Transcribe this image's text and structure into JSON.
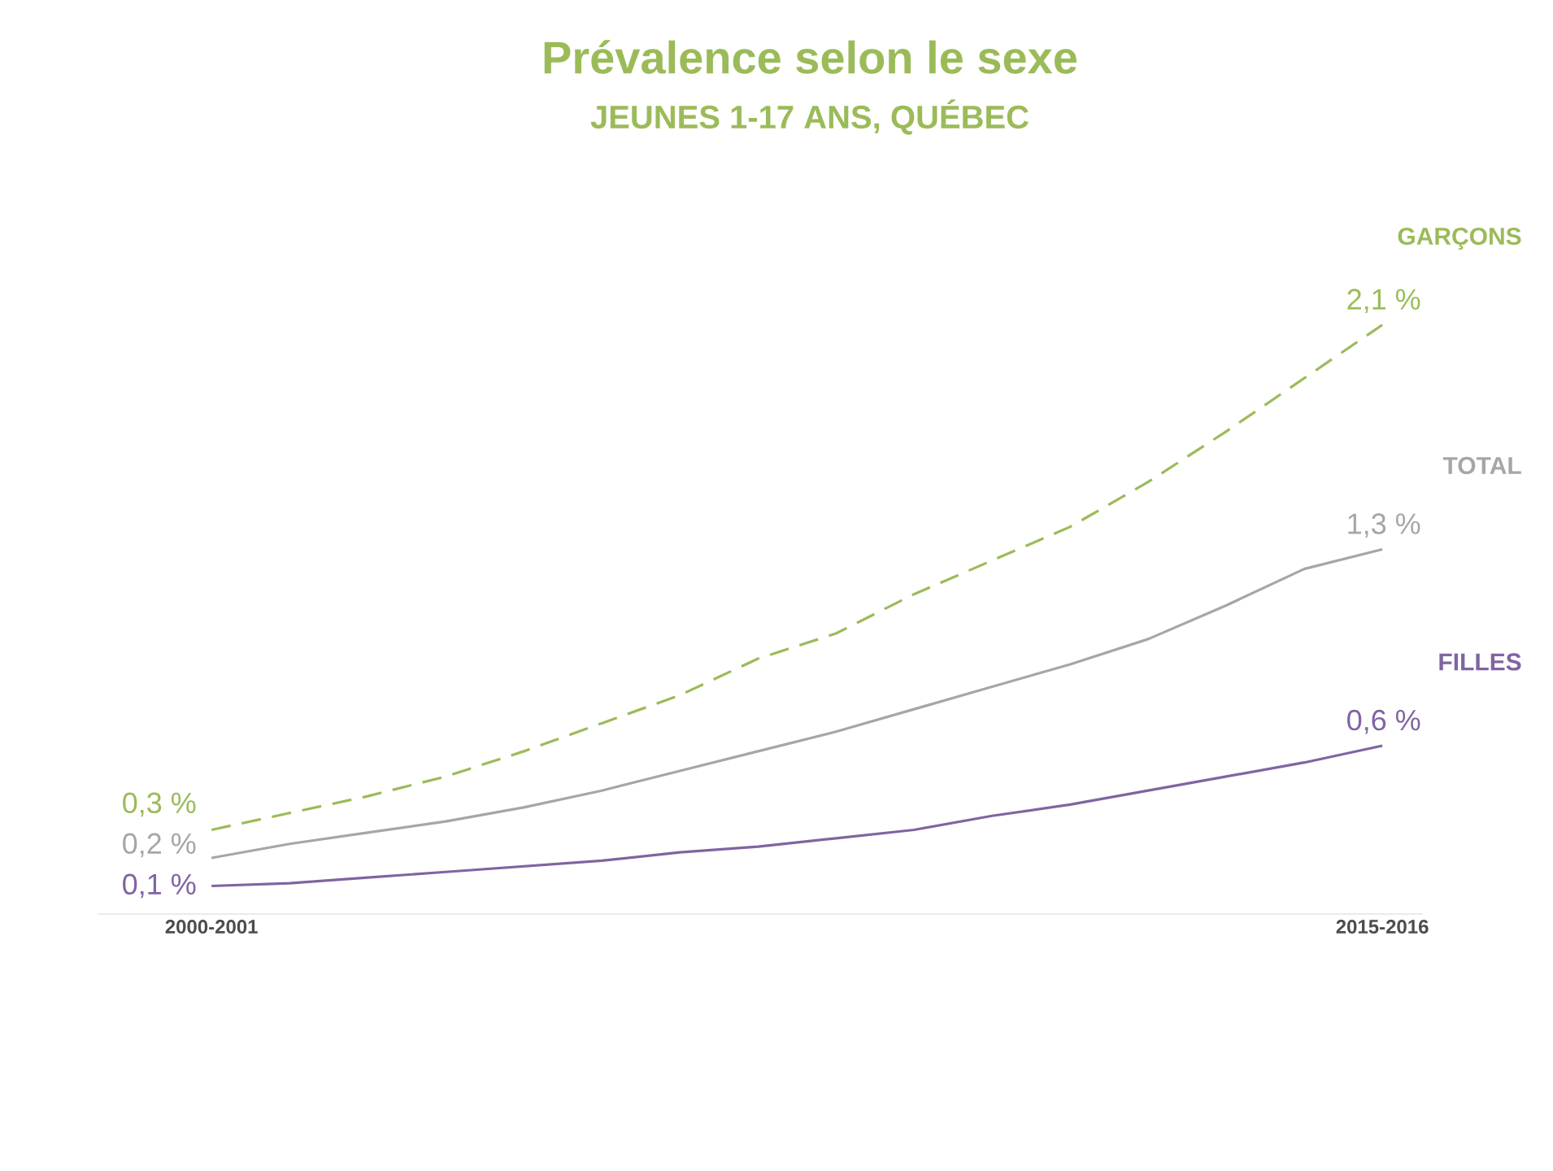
{
  "chart_data": {
    "type": "line",
    "title": "Prévalence selon le sexe",
    "subtitle": "JEUNES 1-17 ANS, QUÉBEC",
    "categories": [
      "2000-2001",
      null,
      null,
      null,
      null,
      null,
      null,
      null,
      null,
      null,
      null,
      null,
      null,
      null,
      null,
      "2015-2016"
    ],
    "series": [
      {
        "name": "GARÇONS",
        "color": "#9bbb59",
        "line_style": "dashed",
        "values": [
          0.3,
          0.36,
          0.42,
          0.49,
          0.58,
          0.68,
          0.78,
          0.91,
          1.0,
          1.14,
          1.26,
          1.38,
          1.54,
          1.72,
          1.91,
          2.1
        ],
        "value_labels": [
          "0,3 %",
          null,
          null,
          null,
          null,
          null,
          null,
          null,
          null,
          null,
          null,
          null,
          null,
          null,
          null,
          "2,1 %"
        ]
      },
      {
        "name": "TOTAL",
        "color": "#a6a6a6",
        "line_style": "solid",
        "values": [
          0.2,
          0.25,
          0.29,
          0.33,
          0.38,
          0.44,
          0.51,
          0.58,
          0.65,
          0.73,
          0.81,
          0.89,
          0.98,
          1.1,
          1.23,
          1.3
        ],
        "value_labels": [
          "0,2 %",
          null,
          null,
          null,
          null,
          null,
          null,
          null,
          null,
          null,
          null,
          null,
          null,
          null,
          null,
          "1,3 %"
        ]
      },
      {
        "name": "FILLES",
        "color": "#8064a2",
        "line_style": "solid",
        "values": [
          0.1,
          0.11,
          0.13,
          0.15,
          0.17,
          0.19,
          0.22,
          0.24,
          0.27,
          0.3,
          0.35,
          0.39,
          0.44,
          0.49,
          0.54,
          0.6
        ],
        "value_labels": [
          "0,1 %",
          null,
          null,
          null,
          null,
          null,
          null,
          null,
          null,
          null,
          null,
          null,
          null,
          null,
          null,
          "0,6 %"
        ]
      }
    ],
    "tick_labels": "x"
  }
}
